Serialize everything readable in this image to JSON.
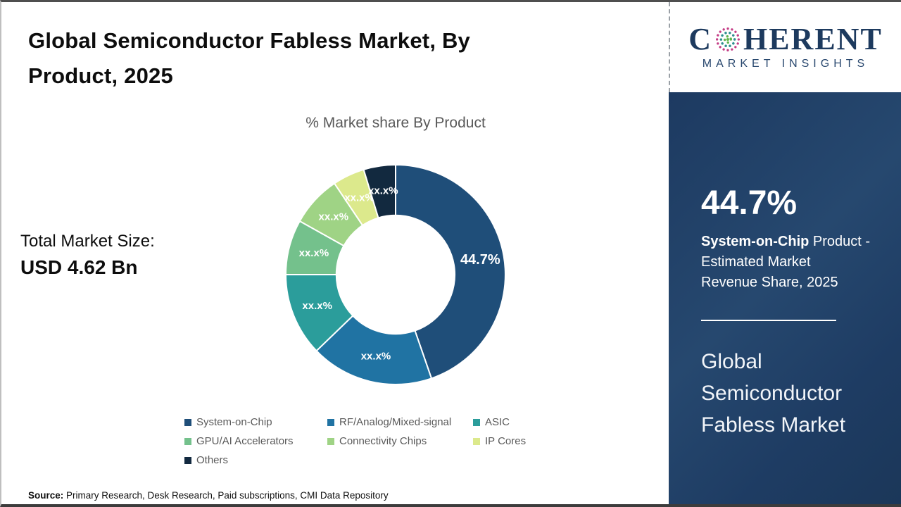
{
  "slide": {
    "title": "Global Semiconductor Fabless Market, By Product, 2025",
    "total_market_label": "Total Market Size:",
    "total_market_value": "USD 4.62 Bn",
    "source_label": "Source:",
    "source_text": " Primary Research, Desk Research, Paid subscriptions, CMI Data Repository"
  },
  "sidebar": {
    "logo": {
      "word_start": "C",
      "word_end": "HERENT",
      "subtitle": "MARKET INSIGHTS"
    },
    "stat_value": "44.7%",
    "stat_desc_bold": "System-on-Chip",
    "stat_desc_lines": [
      " Product -",
      "Estimated Market",
      "Revenue Share, 2025"
    ],
    "market_name": "Global Semiconductor Fabless Market"
  },
  "chart_data": {
    "type": "pie",
    "subtype": "donut",
    "title": "% Market share By Product",
    "categories": [
      "System-on-Chip",
      "RF/Analog/Mixed-signal",
      "ASIC",
      "GPU/AI Accelerators",
      "Connectivity Chips",
      "IP Cores",
      "Others"
    ],
    "values": [
      44.7,
      18.1,
      12.2,
      8.1,
      7.5,
      4.7,
      4.7
    ],
    "displayed_labels": [
      "44.7%",
      "xx.x%",
      "xx.x%",
      "xx.x%",
      "xx.x%",
      "xx.x%",
      "xx.x%"
    ],
    "colors": [
      "#1f4e79",
      "#2073a3",
      "#2b9d9b",
      "#74c18c",
      "#9fd385",
      "#dce98c",
      "#12293f"
    ],
    "start_angle_deg": 0,
    "direction": "clockwise",
    "inner_radius_ratio": 0.54,
    "label_color": "#ffffff",
    "legend_position": "bottom"
  },
  "colors": {
    "panel_navy": "#1e3c63",
    "logo_navy": "#1d3a5e",
    "muted_text": "#595959",
    "globe_pink": "#c43d86",
    "globe_teal": "#2f8f8f",
    "globe_green": "#63b54e"
  }
}
